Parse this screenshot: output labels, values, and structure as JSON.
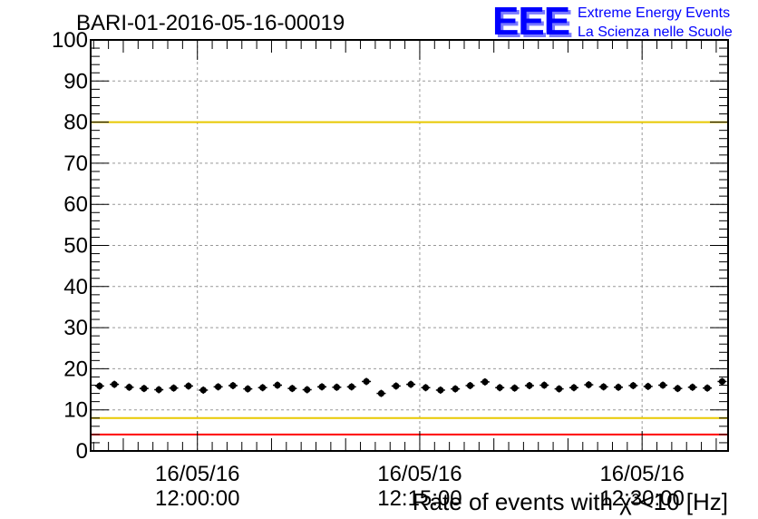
{
  "chart_data": {
    "type": "scatter",
    "title": "BARI-01-2016-05-16-00019",
    "xlabel": "Rate of events with χ²<10 [Hz]",
    "ylabel": "",
    "x_unit": "minutes",
    "xlim": [
      -7.2,
      35.8
    ],
    "ylim": [
      0,
      100
    ],
    "x_ticks": [
      {
        "value": 0,
        "date": "16/05/16",
        "time": "12:00:00"
      },
      {
        "value": 15,
        "date": "16/05/16",
        "time": "12:15:00"
      },
      {
        "value": 30,
        "date": "16/05/16",
        "time": "12:30:00"
      }
    ],
    "y_ticks": [
      0,
      10,
      20,
      30,
      40,
      50,
      60,
      70,
      80,
      90,
      100
    ],
    "grid": true,
    "reference_lines": [
      {
        "y": 100,
        "color": "#ff0000"
      },
      {
        "y": 80,
        "color": "#e8c800"
      },
      {
        "y": 8,
        "color": "#e8c800"
      },
      {
        "y": 4,
        "color": "#ff0000"
      }
    ],
    "series": [
      {
        "x": [
          -6.6,
          -5.6,
          -4.6,
          -3.6,
          -2.6,
          -1.6,
          -0.6,
          0.4,
          1.4,
          2.4,
          3.4,
          4.4,
          5.4,
          6.4,
          7.4,
          8.4,
          9.4,
          10.4,
          11.4,
          12.4,
          13.4,
          14.4,
          15.4,
          16.4,
          17.4,
          18.4,
          19.4,
          20.4,
          21.4,
          22.4,
          23.4,
          24.4,
          25.4,
          26.4,
          27.4,
          28.4,
          29.4,
          30.4,
          31.4,
          32.4,
          33.4,
          34.4,
          35.4
        ],
        "y": [
          15.8,
          16.2,
          15.5,
          15.2,
          14.9,
          15.3,
          15.8,
          14.8,
          15.6,
          15.9,
          15.1,
          15.4,
          16.0,
          15.2,
          14.9,
          15.6,
          15.5,
          15.6,
          16.9,
          14.0,
          15.8,
          16.2,
          15.4,
          14.8,
          15.1,
          15.9,
          16.8,
          15.4,
          15.3,
          15.9,
          16.0,
          15.1,
          15.4,
          16.1,
          15.6,
          15.5,
          15.9,
          15.7,
          16.0,
          15.2,
          15.5,
          15.3,
          16.9
        ],
        "color": "#000000"
      }
    ]
  },
  "branding": {
    "logo_text": "EEE",
    "line1": "Extreme Energy Events",
    "line2": "La Scienza nelle Scuole",
    "color": "#0000ff"
  }
}
